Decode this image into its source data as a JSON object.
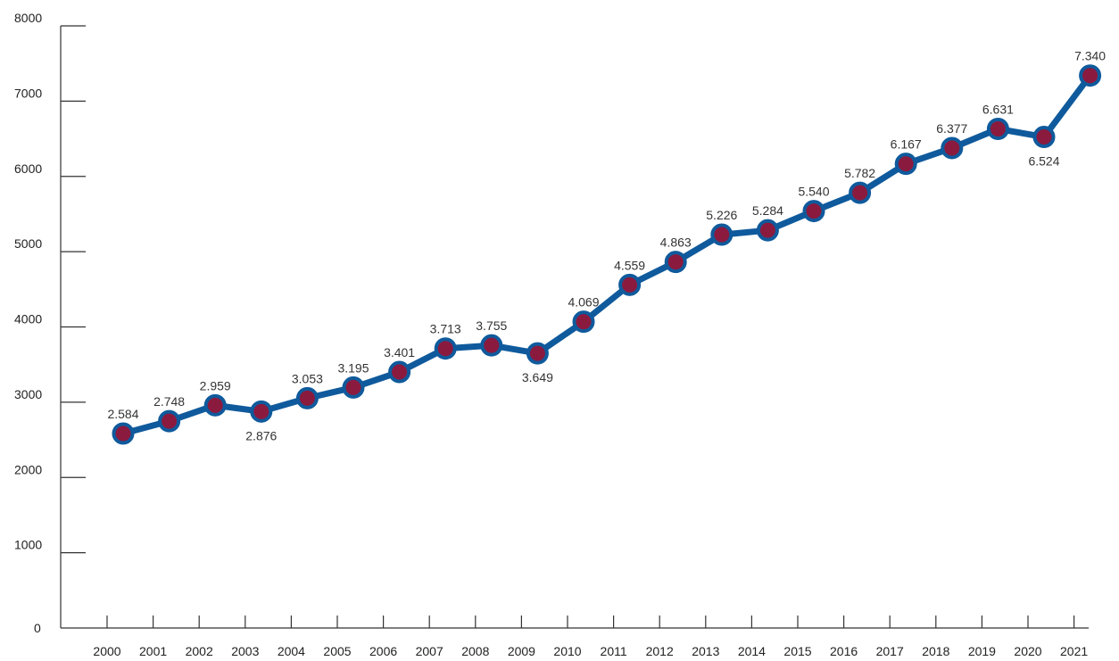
{
  "chart_data": {
    "type": "line",
    "categories": [
      "2000",
      "2001",
      "2002",
      "2003",
      "2004",
      "2005",
      "2006",
      "2007",
      "2008",
      "2009",
      "2010",
      "2011",
      "2012",
      "2013",
      "2014",
      "2015",
      "2016",
      "2017",
      "2018",
      "2019",
      "2020",
      "2021"
    ],
    "values": [
      2584,
      2748,
      2959,
      2876,
      3053,
      3195,
      3401,
      3713,
      3755,
      3649,
      4069,
      4559,
      4863,
      5226,
      5284,
      5540,
      5782,
      6167,
      6377,
      6631,
      6524,
      7340
    ],
    "value_labels": [
      "2.584",
      "2.748",
      "2.959",
      "2.876",
      "3.053",
      "3.195",
      "3.401",
      "3.713",
      "3.755",
      "3.649",
      "4.069",
      "4.559",
      "4.863",
      "5.226",
      "5.284",
      "5.540",
      "5.782",
      "6.167",
      "6.377",
      "6.631",
      "6.524",
      "7.340"
    ],
    "yticks": [
      "0",
      "1000",
      "2000",
      "3000",
      "4000",
      "5000",
      "6000",
      "7000",
      "8000"
    ],
    "ylim": [
      0,
      8000
    ],
    "grid": false,
    "legend": "none",
    "line_color": "#0f5a9c",
    "marker_fill": "#8b1a3f"
  }
}
